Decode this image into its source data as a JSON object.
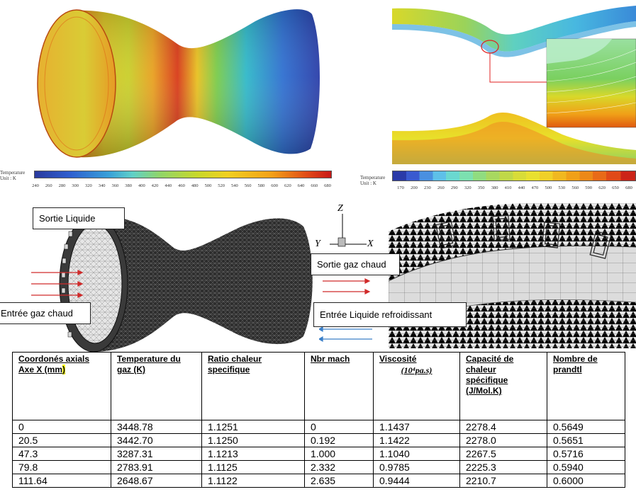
{
  "top_left": {
    "legend_title": "Temperature",
    "legend_unit": "Unit : K",
    "ticks": [
      "240",
      "260",
      "280",
      "300",
      "320",
      "340",
      "360",
      "380",
      "400",
      "420",
      "440",
      "460",
      "480",
      "500",
      "520",
      "540",
      "560",
      "580",
      "600",
      "620",
      "640",
      "660",
      "680"
    ]
  },
  "top_right": {
    "legend_title": "Temperature",
    "legend_unit": "Unit : K",
    "ticks": [
      "170",
      "200",
      "230",
      "260",
      "290",
      "320",
      "350",
      "380",
      "410",
      "440",
      "470",
      "500",
      "530",
      "560",
      "590",
      "620",
      "650",
      "680"
    ]
  },
  "middle": {
    "callouts": {
      "sortie_liquide": "Sortie Liquide",
      "entree_gaz": "Entrée gaz chaud",
      "sortie_gaz": "Sortie gaz chaud",
      "entree_liquide": "Entrée Liquide refroidissant"
    },
    "axes": {
      "z": "Z",
      "y": "Y",
      "x": "X"
    }
  },
  "table": {
    "headers": [
      {
        "lines": [
          "Coordonés axials",
          "Axe X (mm"
        ],
        "highlight": ")"
      },
      {
        "lines": [
          "Temperature du",
          "gaz (K)"
        ]
      },
      {
        "lines": [
          "Ratio chaleur",
          "specifique"
        ]
      },
      {
        "lines": [
          "Nbr mach"
        ]
      },
      {
        "lines": [
          "Viscosité"
        ],
        "formula": "(10⁴pa.s)"
      },
      {
        "lines": [
          "Capacité de",
          "chaleur",
          "spécifique",
          "(J/Mol.K)"
        ]
      },
      {
        "lines": [
          "Nombre de",
          "prandtl"
        ]
      }
    ],
    "rows": [
      [
        "0",
        "3448.78",
        "1.1251",
        "0",
        "1.1437",
        "2278.4",
        "0.5649"
      ],
      [
        "20.5",
        "3442.70",
        "1.1250",
        "0.192",
        "1.1422",
        "2278.0",
        "0.5651"
      ],
      [
        "47.3",
        "3287.31",
        "1.1213",
        "1.000",
        "1.1040",
        "2267.5",
        "0.5716"
      ],
      [
        "79.8",
        "2783.91",
        "1.1125",
        "2.332",
        "0.9785",
        "2225.3",
        "0.5940"
      ],
      [
        "111.64",
        "2648.67",
        "1.1122",
        "2.635",
        "0.9444",
        "2210.7",
        "0.6000"
      ]
    ]
  }
}
